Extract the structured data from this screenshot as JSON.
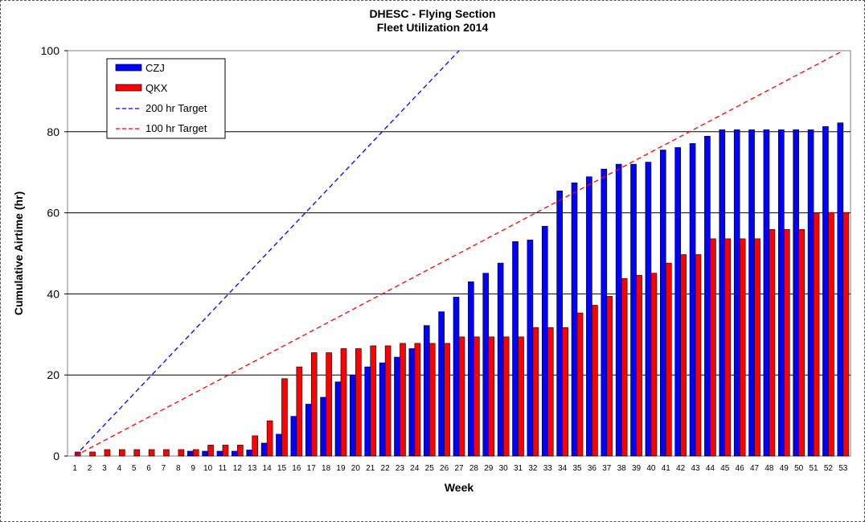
{
  "chart_data": {
    "type": "bar",
    "title": "DHESC - Flying Section",
    "subtitle": "Fleet Utilization 2014",
    "xlabel": "Week",
    "ylabel": "Cumulative Airtime (hr)",
    "ylim": [
      0,
      100
    ],
    "yticks": [
      0,
      20,
      40,
      60,
      80,
      100
    ],
    "grid": true,
    "legend_position": "top-left",
    "categories": [
      "1",
      "2",
      "3",
      "4",
      "5",
      "6",
      "7",
      "8",
      "9",
      "10",
      "11",
      "12",
      "13",
      "14",
      "15",
      "16",
      "17",
      "18",
      "19",
      "20",
      "21",
      "22",
      "23",
      "24",
      "25",
      "26",
      "27",
      "28",
      "29",
      "30",
      "31",
      "32",
      "33",
      "34",
      "35",
      "36",
      "37",
      "38",
      "39",
      "40",
      "41",
      "42",
      "43",
      "44",
      "45",
      "46",
      "47",
      "48",
      "49",
      "50",
      "51",
      "52",
      "53"
    ],
    "series": [
      {
        "name": "CZJ",
        "color": "#0000ff",
        "values": [
          0,
          0,
          0,
          0,
          0,
          0,
          0,
          0,
          1.2,
          1.2,
          1.2,
          1.2,
          1.5,
          3.2,
          5.4,
          9.8,
          12.8,
          14.5,
          18.3,
          20.0,
          22.0,
          23.0,
          24.4,
          26.5,
          32.2,
          35.6,
          39.2,
          43.0,
          45.1,
          47.6,
          52.9,
          53.3,
          56.7,
          65.4,
          67.4,
          68.9,
          70.8,
          72.0,
          72.0,
          72.5,
          75.5,
          76.1,
          77.1,
          78.9,
          80.5,
          80.5,
          80.5,
          80.5,
          80.5,
          80.5,
          80.5,
          81.3,
          82.2
        ]
      },
      {
        "name": "QKX",
        "color": "#ff0000",
        "values": [
          1.0,
          1.0,
          1.6,
          1.6,
          1.6,
          1.6,
          1.6,
          1.6,
          1.6,
          2.7,
          2.7,
          2.7,
          5.0,
          8.7,
          19.1,
          22.0,
          25.5,
          25.5,
          26.5,
          26.5,
          27.2,
          27.2,
          27.8,
          27.8,
          27.8,
          27.8,
          29.4,
          29.4,
          29.4,
          29.4,
          29.4,
          31.7,
          31.7,
          31.7,
          35.3,
          37.2,
          39.4,
          43.8,
          44.6,
          45.1,
          47.6,
          49.7,
          49.7,
          53.6,
          53.6,
          53.6,
          53.6,
          55.9,
          55.9,
          55.9,
          60.0,
          60.1,
          60.1
        ]
      }
    ],
    "targets": [
      {
        "name": "200 hr Target",
        "color": "#0000ff",
        "x": [
          1,
          27
        ],
        "y": [
          0,
          100
        ]
      },
      {
        "name": "100 hr Target",
        "color": "#ff0000",
        "x": [
          1,
          53
        ],
        "y": [
          0,
          100
        ]
      }
    ]
  }
}
